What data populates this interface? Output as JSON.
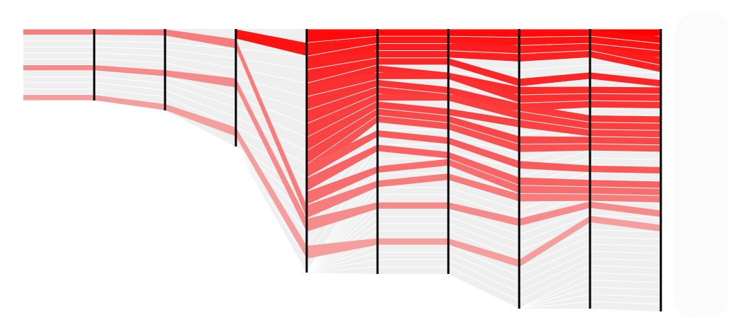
{
  "chart_data": {
    "type": "parallel-flow",
    "title": "",
    "xlabel": "",
    "ylabel": "",
    "grid": false,
    "legend": "none",
    "axis_count": 9,
    "axis_row_counts": [
      12,
      12,
      12,
      18,
      34,
      34,
      34,
      39,
      39
    ],
    "colors": {
      "background": "#ffffff",
      "axis": "#000000",
      "band_neutral": "#efefef",
      "band_highlight": "#ff0000",
      "separator": "#ffffff",
      "side_panel": "#fcfbfb"
    },
    "highlighted_rows": [
      {
        "intensity": 1.0,
        "rows": [
          null,
          null,
          null,
          0,
          0,
          0,
          0,
          0,
          0
        ]
      },
      {
        "intensity": 0.96,
        "rows": [
          null,
          null,
          null,
          0,
          0,
          0,
          0,
          0,
          1
        ]
      },
      {
        "intensity": 0.92,
        "rows": [
          null,
          null,
          0,
          1,
          1,
          1,
          1,
          1,
          2
        ]
      },
      {
        "intensity": 0.9,
        "rows": [
          null,
          null,
          null,
          1,
          1,
          1,
          2,
          2,
          3
        ]
      },
      {
        "intensity": 0.88,
        "rows": [
          null,
          null,
          null,
          2,
          2,
          2,
          2,
          2,
          4
        ]
      },
      {
        "intensity": 0.86,
        "rows": [
          null,
          null,
          null,
          2,
          3,
          3,
          3,
          3,
          5
        ]
      },
      {
        "intensity": 0.84,
        "rows": [
          null,
          null,
          null,
          3,
          4,
          4,
          6,
          6,
          7
        ]
      },
      {
        "intensity": 0.82,
        "rows": [
          null,
          null,
          null,
          4,
          5,
          6,
          7,
          8,
          8
        ]
      },
      {
        "intensity": 0.8,
        "rows": [
          null,
          null,
          null,
          4,
          6,
          6,
          8,
          9,
          9
        ]
      },
      {
        "intensity": 0.78,
        "rows": [
          null,
          null,
          null,
          5,
          7,
          8,
          9,
          10,
          10
        ]
      },
      {
        "intensity": 0.76,
        "rows": [
          null,
          null,
          null,
          6,
          8,
          9,
          9,
          12,
          12
        ]
      },
      {
        "intensity": 0.74,
        "rows": [
          null,
          null,
          null,
          7,
          9,
          9,
          10,
          13,
          13
        ]
      },
      {
        "intensity": 0.72,
        "rows": [
          null,
          null,
          null,
          8,
          10,
          11,
          11,
          14,
          14
        ]
      },
      {
        "intensity": 0.7,
        "rows": [
          null,
          null,
          null,
          9,
          11,
          12,
          13,
          15,
          15
        ]
      },
      {
        "intensity": 0.66,
        "rows": [
          null,
          null,
          null,
          10,
          12,
          13,
          14,
          16,
          16
        ]
      },
      {
        "intensity": 0.62,
        "rows": [
          null,
          null,
          null,
          10,
          14,
          15,
          16,
          19,
          19
        ]
      },
      {
        "intensity": 0.58,
        "rows": [
          null,
          null,
          null,
          11,
          16,
          17,
          18,
          21,
          21
        ]
      },
      {
        "intensity": 0.54,
        "rows": [
          null,
          null,
          null,
          12,
          19,
          18,
          19,
          22,
          22
        ]
      },
      {
        "intensity": 0.48,
        "rows": [
          0,
          0,
          1,
          13,
          21,
          20,
          20,
          23,
          23
        ]
      },
      {
        "intensity": 0.42,
        "rows": [
          6,
          6,
          5,
          14,
          24,
          24,
          23,
          24,
          25
        ]
      },
      {
        "intensity": 0.34,
        "rows": [
          11,
          11,
          10,
          16,
          29,
          29,
          28,
          26,
          27
        ]
      }
    ]
  }
}
